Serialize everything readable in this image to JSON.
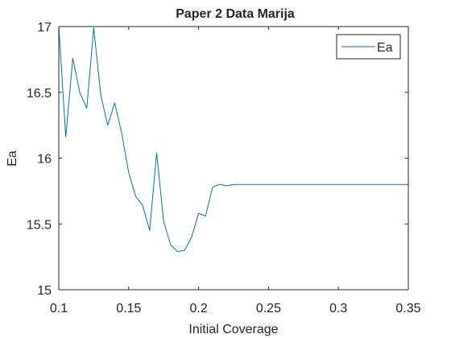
{
  "chart_data": {
    "type": "line",
    "title": "Paper 2 Data Marija",
    "xlabel": "Initial Coverage",
    "ylabel": "Ea",
    "xlim": [
      0.1,
      0.35
    ],
    "ylim": [
      15,
      17
    ],
    "xticks": [
      0.1,
      0.15,
      0.2,
      0.25,
      0.3,
      0.35
    ],
    "xtick_labels": [
      "0.1",
      "0.15",
      "0.2",
      "0.25",
      "0.3",
      "0.35"
    ],
    "yticks": [
      15,
      15.5,
      16,
      16.5,
      17
    ],
    "ytick_labels": [
      "15",
      "15.5",
      "16",
      "16.5",
      "17"
    ],
    "grid": false,
    "legend": {
      "position": "top-right",
      "entries": [
        "Ea"
      ]
    },
    "series": [
      {
        "name": "Ea",
        "color": "#0072BD",
        "x": [
          0.1,
          0.105,
          0.11,
          0.115,
          0.12,
          0.125,
          0.13,
          0.135,
          0.14,
          0.145,
          0.15,
          0.155,
          0.16,
          0.165,
          0.17,
          0.175,
          0.18,
          0.185,
          0.19,
          0.195,
          0.2,
          0.205,
          0.21,
          0.215,
          0.22,
          0.225,
          0.23,
          0.24,
          0.25,
          0.26,
          0.27,
          0.28,
          0.29,
          0.3,
          0.31,
          0.32,
          0.33,
          0.34,
          0.35
        ],
        "y": [
          17.0,
          16.16,
          16.76,
          16.5,
          16.38,
          16.99,
          16.48,
          16.25,
          16.42,
          16.19,
          15.89,
          15.71,
          15.64,
          15.45,
          16.04,
          15.52,
          15.34,
          15.29,
          15.3,
          15.4,
          15.58,
          15.56,
          15.78,
          15.8,
          15.79,
          15.8,
          15.8,
          15.8,
          15.8,
          15.8,
          15.8,
          15.8,
          15.8,
          15.8,
          15.8,
          15.8,
          15.8,
          15.8,
          15.8
        ]
      }
    ]
  }
}
